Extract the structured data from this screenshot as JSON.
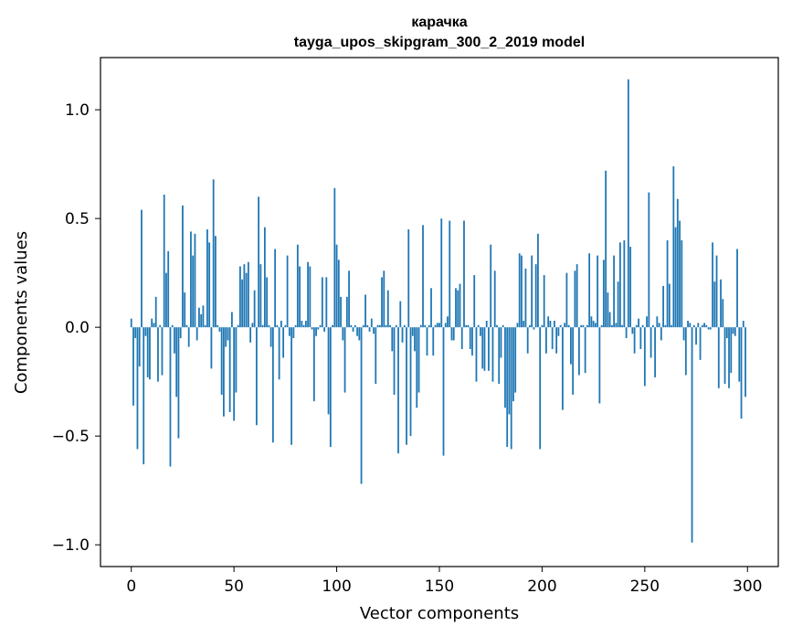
{
  "chart_data": {
    "type": "bar",
    "title": "карачка",
    "subtitle": "tayga_upos_skipgram_300_2_2019 model",
    "xlabel": "Vector components",
    "ylabel": "Components values",
    "xlim": [
      -15,
      315
    ],
    "ylim": [
      -1.1,
      1.24
    ],
    "xticks": [
      0,
      50,
      100,
      150,
      200,
      250,
      300
    ],
    "xtick_labels": [
      "0",
      "50",
      "100",
      "150",
      "200",
      "250",
      "300"
    ],
    "yticks": [
      -1.0,
      -0.5,
      0.0,
      0.5,
      1.0
    ],
    "ytick_labels": [
      "−1.0",
      "−0.5",
      "0.0",
      "0.5",
      "1.0"
    ],
    "grid": false,
    "bar_color": "#1f77b4",
    "values": [
      0.04,
      -0.36,
      -0.05,
      -0.56,
      -0.18,
      0.54,
      -0.63,
      -0.04,
      -0.23,
      -0.24,
      0.04,
      0.02,
      0.14,
      -0.25,
      0.01,
      -0.22,
      0.61,
      0.25,
      0.35,
      -0.64,
      0.01,
      -0.12,
      -0.32,
      -0.51,
      -0.05,
      0.56,
      0.16,
      0.01,
      -0.09,
      0.44,
      0.33,
      0.43,
      -0.06,
      0.09,
      0.06,
      0.1,
      0.01,
      0.45,
      0.39,
      -0.19,
      0.68,
      0.42,
      0.01,
      -0.02,
      -0.31,
      -0.41,
      -0.09,
      -0.06,
      -0.39,
      0.07,
      -0.43,
      -0.3,
      0.01,
      0.28,
      0.22,
      0.29,
      0.25,
      0.3,
      -0.07,
      0.02,
      0.17,
      -0.45,
      0.6,
      0.29,
      0.01,
      0.46,
      0.23,
      0.01,
      -0.09,
      -0.53,
      0.36,
      0.01,
      -0.24,
      0.03,
      -0.14,
      0.01,
      0.33,
      -0.04,
      -0.54,
      -0.05,
      0.01,
      0.38,
      0.28,
      0.03,
      0.01,
      0.03,
      0.3,
      0.28,
      -0.01,
      -0.34,
      -0.04,
      -0.01,
      0.01,
      0.23,
      -0.02,
      0.23,
      -0.4,
      -0.55,
      0.01,
      0.64,
      0.38,
      0.31,
      0.14,
      -0.06,
      -0.3,
      0.14,
      0.26,
      0.01,
      -0.02,
      0.01,
      -0.04,
      -0.06,
      -0.72,
      0.01,
      0.15,
      0.01,
      -0.02,
      0.04,
      -0.03,
      -0.26,
      0.01,
      0.01,
      0.23,
      0.26,
      0.01,
      0.17,
      0.01,
      -0.11,
      -0.31,
      0.01,
      -0.58,
      0.12,
      -0.07,
      0.01,
      -0.54,
      0.45,
      -0.5,
      -0.04,
      -0.11,
      -0.37,
      -0.3,
      0.01,
      0.47,
      0.01,
      -0.13,
      0.01,
      0.18,
      -0.13,
      0.01,
      0.02,
      0.02,
      0.5,
      -0.59,
      0.02,
      0.05,
      0.49,
      -0.06,
      -0.06,
      0.18,
      0.17,
      0.2,
      -0.1,
      0.49,
      0.01,
      0.01,
      -0.1,
      -0.13,
      0.24,
      -0.25,
      0.01,
      -0.04,
      -0.19,
      -0.2,
      0.03,
      -0.2,
      0.38,
      -0.25,
      0.26,
      0.01,
      -0.26,
      -0.14,
      0.01,
      -0.37,
      -0.55,
      -0.4,
      -0.56,
      -0.34,
      -0.3,
      0.02,
      0.34,
      0.33,
      0.03,
      0.27,
      -0.12,
      0.01,
      0.33,
      -0.01,
      0.29,
      0.43,
      -0.56,
      0.01,
      0.24,
      -0.12,
      0.05,
      0.03,
      -0.1,
      0.03,
      -0.12,
      -0.04,
      0.01,
      -0.38,
      0.02,
      0.25,
      0.01,
      -0.17,
      -0.31,
      0.26,
      0.29,
      -0.22,
      0.01,
      0.01,
      -0.21,
      0.01,
      0.34,
      0.05,
      0.03,
      0.02,
      0.33,
      -0.35,
      0.01,
      0.31,
      0.72,
      0.16,
      0.07,
      0.01,
      0.33,
      0.02,
      0.21,
      0.39,
      0.01,
      0.4,
      -0.05,
      1.14,
      0.37,
      -0.03,
      -0.12,
      0.01,
      0.04,
      -0.1,
      0.01,
      -0.27,
      0.05,
      0.62,
      -0.14,
      0.01,
      -0.23,
      0.05,
      0.02,
      -0.06,
      0.19,
      0.01,
      0.4,
      0.2,
      0.01,
      0.74,
      0.46,
      0.59,
      0.49,
      0.4,
      -0.06,
      -0.22,
      0.03,
      0.02,
      -0.99,
      0.01,
      -0.08,
      0.02,
      -0.15,
      0.01,
      0.02,
      0.01,
      -0.01,
      -0.01,
      0.39,
      0.21,
      0.33,
      -0.28,
      0.22,
      0.13,
      -0.26,
      -0.05,
      -0.28,
      -0.21,
      -0.03,
      -0.04,
      0.36,
      -0.25,
      -0.42,
      0.03,
      -0.32
    ]
  }
}
